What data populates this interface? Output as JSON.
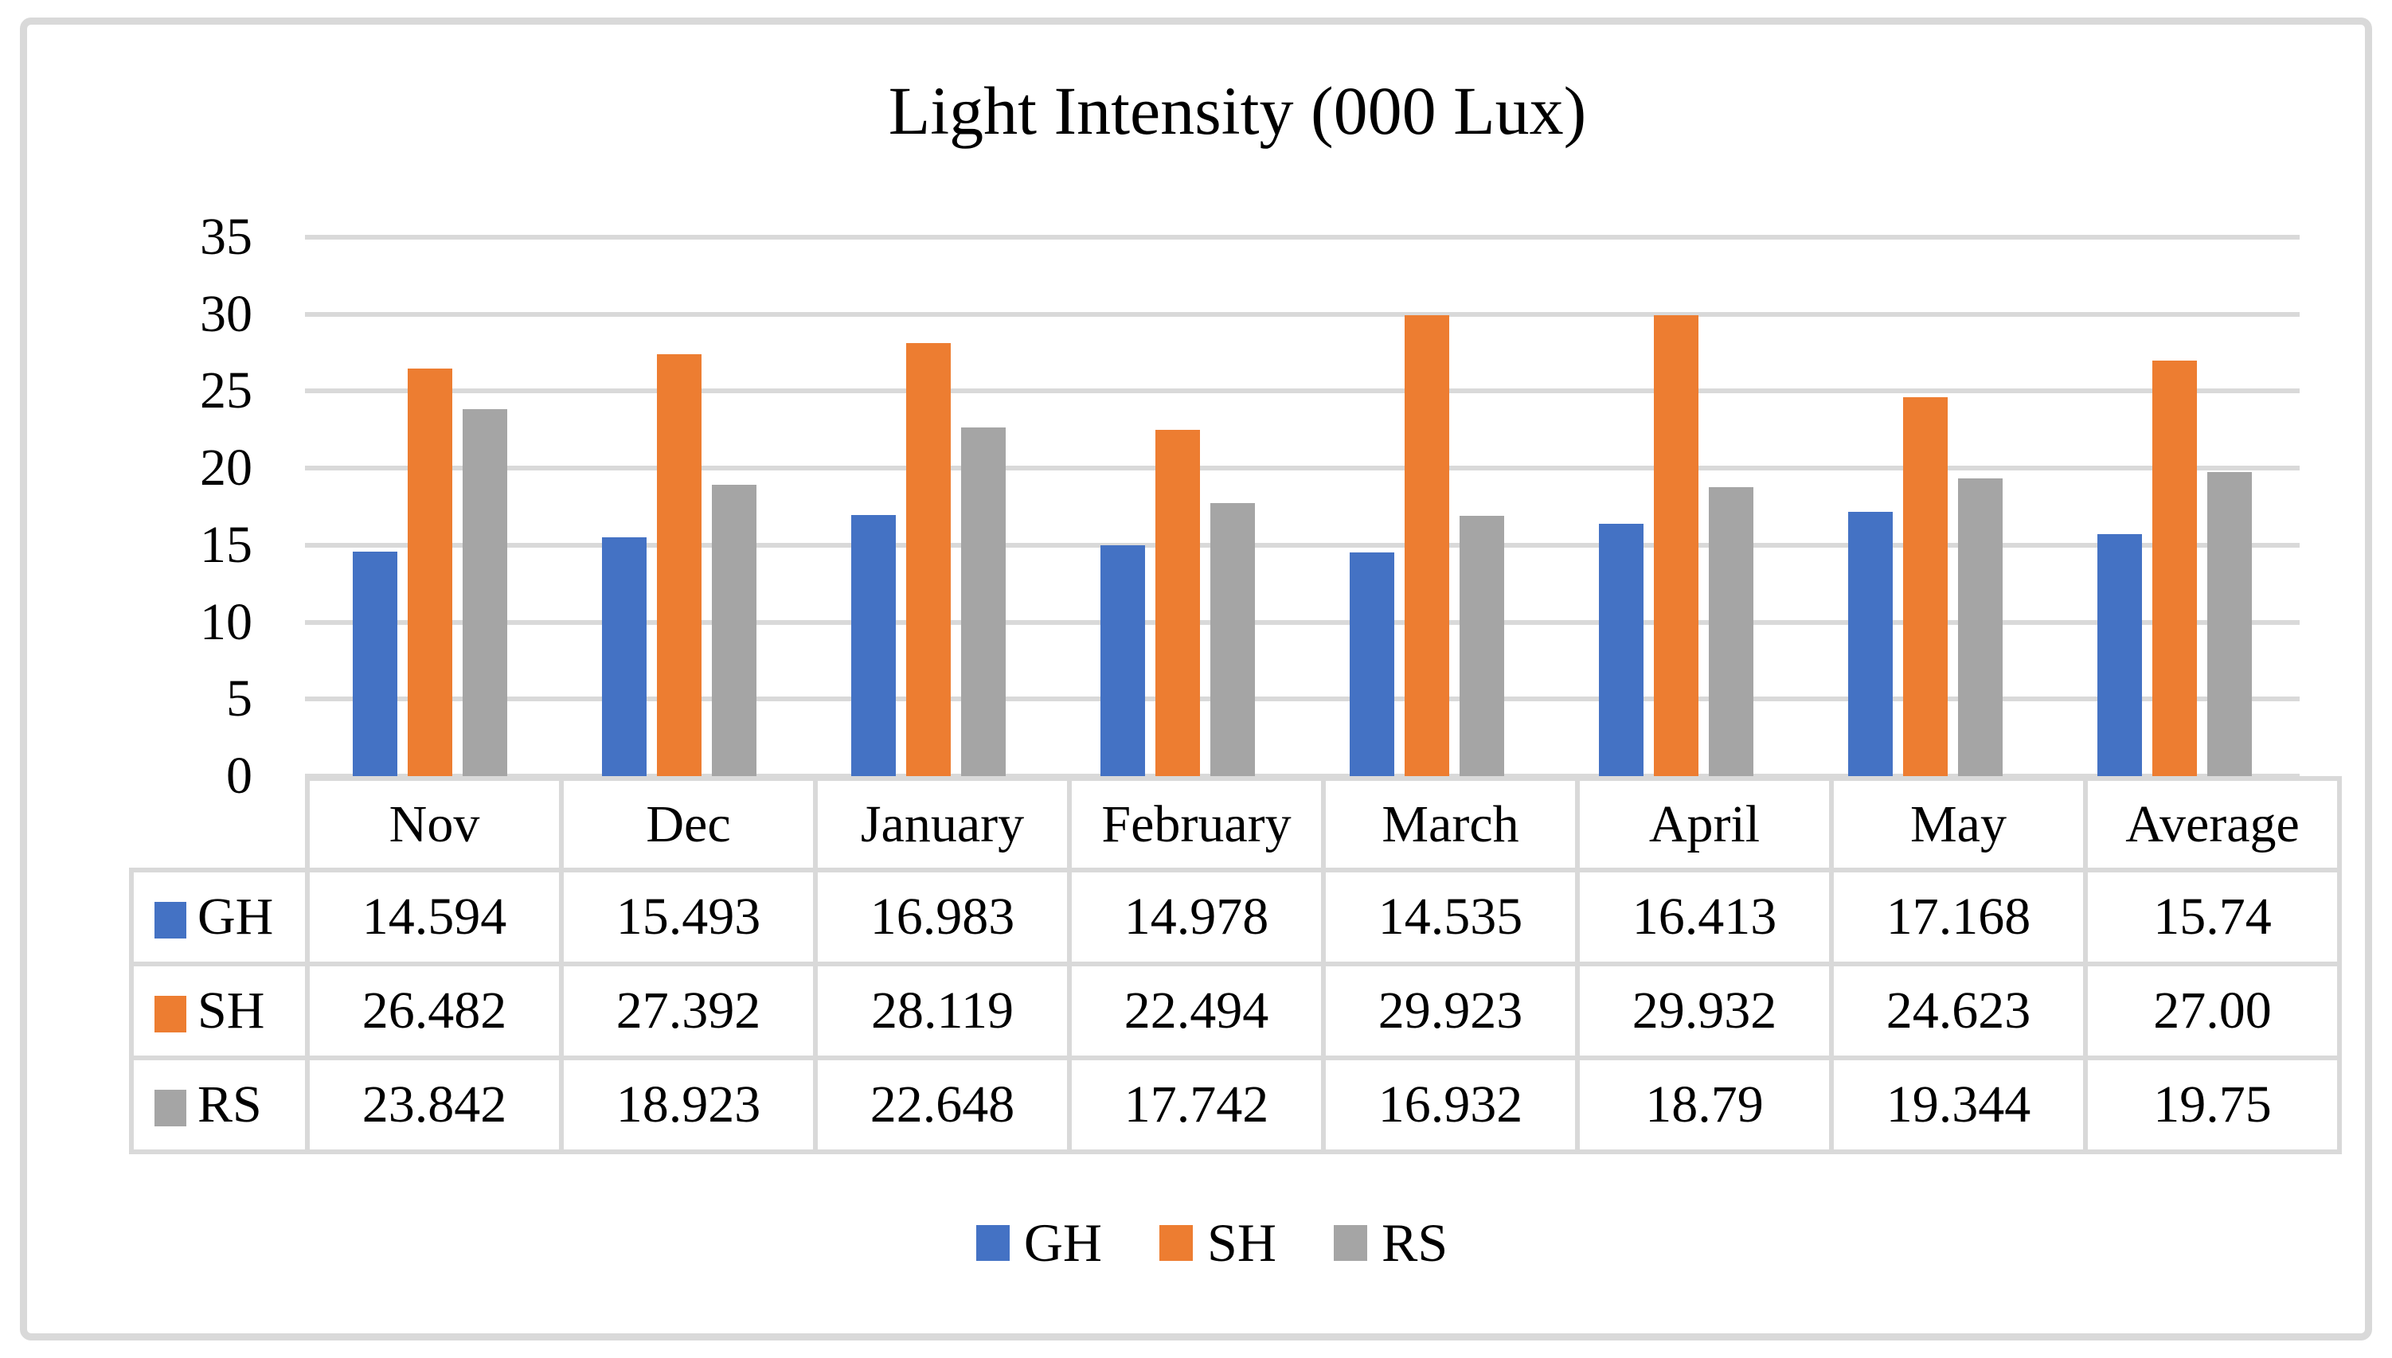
{
  "chart_data": {
    "type": "bar",
    "title": "Light Intensity (000 Lux)",
    "categories": [
      "Nov",
      "Dec",
      "January",
      "February",
      "March",
      "April",
      "May",
      "Average"
    ],
    "series": [
      {
        "name": "GH",
        "color": "#4472c4",
        "values": [
          14.594,
          15.493,
          16.983,
          14.978,
          14.535,
          16.413,
          17.168,
          15.74
        ],
        "labels": [
          "14.594",
          "15.493",
          "16.983",
          "14.978",
          "14.535",
          "16.413",
          "17.168",
          "15.74"
        ]
      },
      {
        "name": "SH",
        "color": "#ed7d31",
        "values": [
          26.482,
          27.392,
          28.119,
          22.494,
          29.923,
          29.932,
          24.623,
          27.0
        ],
        "labels": [
          "26.482",
          "27.392",
          "28.119",
          "22.494",
          "29.923",
          "29.932",
          "24.623",
          "27.00"
        ]
      },
      {
        "name": "RS",
        "color": "#a5a5a5",
        "values": [
          23.842,
          18.923,
          22.648,
          17.742,
          16.932,
          18.79,
          19.344,
          19.75
        ],
        "labels": [
          "23.842",
          "18.923",
          "22.648",
          "17.742",
          "16.932",
          "18.79",
          "19.344",
          "19.75"
        ]
      }
    ],
    "ylim": [
      0,
      35
    ],
    "y_ticks": [
      0,
      5,
      10,
      15,
      20,
      25,
      30,
      35
    ],
    "y_tick_labels": [
      "0",
      "5",
      "10",
      "15",
      "20",
      "25",
      "30",
      "35"
    ],
    "grid": true,
    "gridline_color": "#d9d9d9",
    "legend_position": "bottom",
    "legend_labels": [
      "GH",
      "SH",
      "RS"
    ],
    "data_table_shown": true
  }
}
